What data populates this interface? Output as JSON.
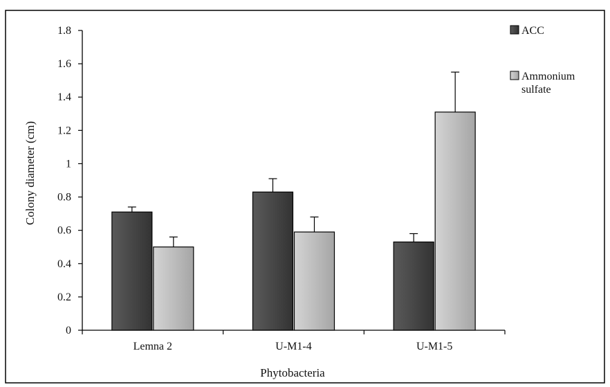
{
  "chart_data": {
    "type": "bar",
    "title": "",
    "xlabel": "Phytobacteria",
    "ylabel": "Colony diameter (cm)",
    "categories": [
      "Lemna 2",
      "U-M1-4",
      "U-M1-5"
    ],
    "ylim": [
      0,
      1.8
    ],
    "yticks": [
      "0",
      "0.2",
      "0.4",
      "0.6",
      "0.8",
      "1",
      "1.2",
      "1.4",
      "1.6",
      "1.8"
    ],
    "grid": false,
    "legend_position": "top-right",
    "series": [
      {
        "name": "ACC",
        "values": [
          0.71,
          0.83,
          0.53
        ],
        "errors": [
          0.03,
          0.08,
          0.05
        ],
        "color": "#4a4a4a"
      },
      {
        "name": "Ammonium sulfate",
        "legend_lines": [
          "Ammonium",
          "sulfate"
        ],
        "values": [
          0.5,
          0.59,
          1.31
        ],
        "errors": [
          0.06,
          0.09,
          0.24
        ],
        "color": "#c0c0c0"
      }
    ]
  }
}
